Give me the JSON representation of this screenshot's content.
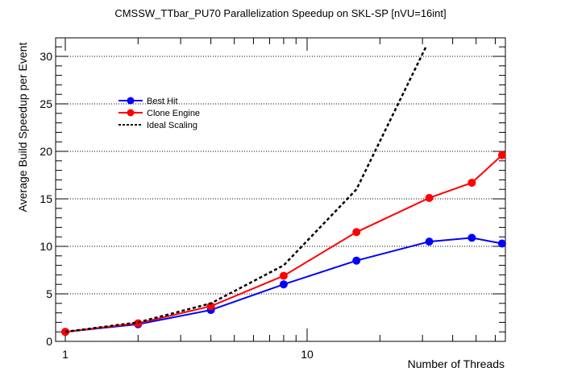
{
  "chart_data": {
    "type": "line",
    "title": "CMSSW_TTbar_PU70 Parallelization Speedup on SKL-SP [nVU=16int]",
    "xlabel": "Number of Threads",
    "ylabel": "Average Build Speedup per Event",
    "xscale": "log",
    "xlim": [
      0.91,
      66
    ],
    "ylim": [
      0,
      32
    ],
    "xticks_labeled": [
      "1",
      "10"
    ],
    "yticks": [
      "0",
      "5",
      "10",
      "15",
      "20",
      "25",
      "30"
    ],
    "grid": "horizontal dotted",
    "legend_position": "top-left",
    "series": [
      {
        "name": "Best Hit",
        "color": "#0000ff",
        "marker": "circle",
        "x": [
          1,
          2,
          4,
          8,
          16,
          32,
          48,
          64
        ],
        "y": [
          1.0,
          1.8,
          3.3,
          6.0,
          8.5,
          10.5,
          10.9,
          10.3
        ]
      },
      {
        "name": "Clone Engine",
        "color": "#ff0000",
        "marker": "circle",
        "x": [
          1,
          2,
          4,
          8,
          16,
          32,
          48,
          64
        ],
        "y": [
          1.0,
          1.9,
          3.7,
          6.9,
          11.5,
          15.1,
          16.7,
          19.6
        ]
      },
      {
        "name": "Ideal Scaling",
        "color": "#000000",
        "marker": "none",
        "dashed": true,
        "x": [
          1,
          2,
          4,
          8,
          16,
          31
        ],
        "y": [
          1,
          2,
          4,
          8,
          16,
          31
        ]
      }
    ]
  }
}
